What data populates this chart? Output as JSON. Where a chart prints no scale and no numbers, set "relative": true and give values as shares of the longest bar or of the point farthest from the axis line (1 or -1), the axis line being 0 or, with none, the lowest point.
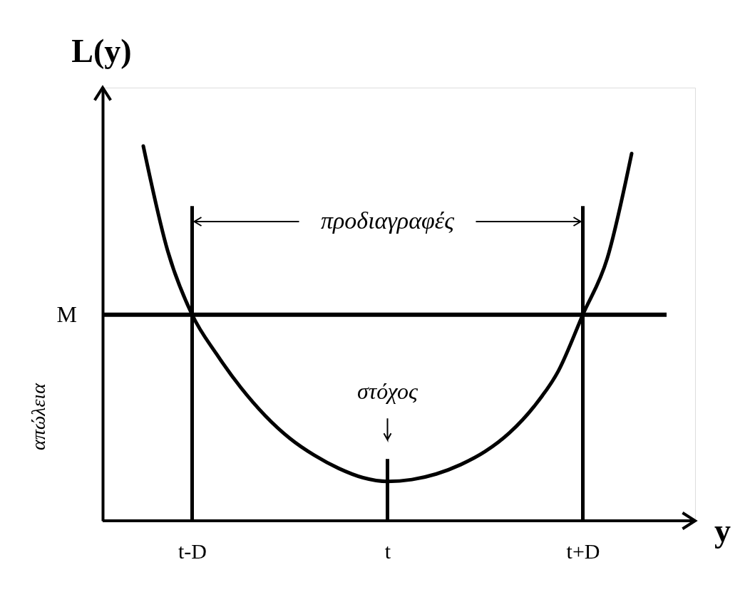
{
  "chart_data": {
    "type": "line",
    "relative": true,
    "xlabel": "y",
    "ylabel": "L(y)",
    "categories": [
      null,
      null,
      "t-D",
      null,
      null,
      null,
      null,
      null,
      null,
      null,
      "t",
      null,
      null,
      null,
      null,
      null,
      null,
      null,
      "t+D",
      null,
      null
    ],
    "series": [
      {
        "color": "#000000",
        "values": [
          1.0,
          0.72,
          0.55,
          0.445,
          0.355,
          0.28,
          0.22,
          0.175,
          0.14,
          0.115,
          0.105,
          0.11,
          0.125,
          0.15,
          0.185,
          0.235,
          0.305,
          0.4,
          0.55,
          0.7,
          0.98
        ]
      },
      {
        "type": "bar",
        "color": "#000000",
        "values": [
          null,
          null,
          0.84,
          null,
          null,
          null,
          null,
          null,
          null,
          null,
          0.165,
          null,
          null,
          null,
          null,
          null,
          null,
          null,
          0.84,
          null,
          null
        ]
      }
    ],
    "ref_lines": [
      {
        "axis": "y",
        "value": 0.55,
        "label": "M",
        "color": "#000000"
      }
    ],
    "annotations": [
      "προδιαγραφές",
      {
        "text": "στόχος",
        "x": "t",
        "y": 0.165
      },
      "απώλεια"
    ],
    "line_style": "solid"
  }
}
